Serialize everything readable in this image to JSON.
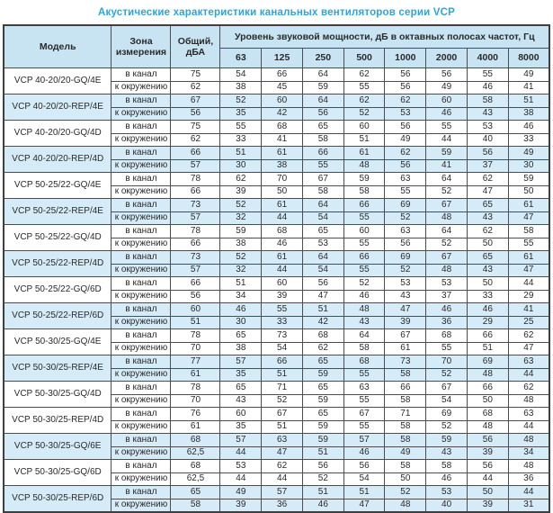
{
  "title": "Акустические характеристики канальных вентиляторов  серии VCP",
  "table": {
    "headers": {
      "model": "Модель",
      "zone": "Зона измерения",
      "total": "Общий, дБА",
      "band_group": "Уровень звуковой мощности, дБ в октавных полосах частот, Гц",
      "frequencies": [
        "63",
        "125",
        "250",
        "500",
        "1000",
        "2000",
        "4000",
        "8000"
      ]
    },
    "zone_labels": {
      "duct": "в канал",
      "ambient": "к окружению"
    },
    "colors": {
      "title_text": "#2aa5de",
      "header_bg": "#c8e4f3",
      "shaded_row_bg": "#d6ebf8",
      "border": "#4d4d4d"
    },
    "rows": [
      {
        "model": "VCP 40-20/20-GQ/4E",
        "shaded": false,
        "duct": {
          "total": "75",
          "bands": [
            "54",
            "66",
            "64",
            "62",
            "56",
            "56",
            "55",
            "49"
          ]
        },
        "ambient": {
          "total": "62",
          "bands": [
            "38",
            "45",
            "59",
            "55",
            "56",
            "49",
            "46",
            "41"
          ]
        }
      },
      {
        "model": "VCP 40-20/20-REP/4E",
        "shaded": true,
        "duct": {
          "total": "67",
          "bands": [
            "52",
            "60",
            "64",
            "62",
            "62",
            "60",
            "58",
            "51"
          ]
        },
        "ambient": {
          "total": "56",
          "bands": [
            "35",
            "42",
            "56",
            "52",
            "53",
            "46",
            "43",
            "38"
          ]
        }
      },
      {
        "model": "VCP 40-20/20-GQ/4D",
        "shaded": false,
        "duct": {
          "total": "75",
          "bands": [
            "55",
            "68",
            "65",
            "60",
            "56",
            "55",
            "53",
            "46"
          ]
        },
        "ambient": {
          "total": "62",
          "bands": [
            "33",
            "41",
            "58",
            "51",
            "49",
            "44",
            "40",
            "33"
          ]
        }
      },
      {
        "model": "VCP 40-20/20-REP/4D",
        "shaded": true,
        "duct": {
          "total": "66",
          "bands": [
            "51",
            "61",
            "66",
            "61",
            "62",
            "59",
            "56",
            "49"
          ]
        },
        "ambient": {
          "total": "57",
          "bands": [
            "30",
            "38",
            "55",
            "48",
            "56",
            "41",
            "37",
            "30"
          ]
        }
      },
      {
        "model": "VCP 50-25/22-GQ/4E",
        "shaded": false,
        "duct": {
          "total": "78",
          "bands": [
            "62",
            "70",
            "67",
            "59",
            "63",
            "64",
            "62",
            "59"
          ]
        },
        "ambient": {
          "total": "66",
          "bands": [
            "39",
            "50",
            "58",
            "58",
            "55",
            "52",
            "47",
            "50"
          ]
        }
      },
      {
        "model": "VCP 50-25/22-REP/4E",
        "shaded": true,
        "duct": {
          "total": "73",
          "bands": [
            "52",
            "61",
            "64",
            "66",
            "69",
            "67",
            "65",
            "61"
          ]
        },
        "ambient": {
          "total": "57",
          "bands": [
            "32",
            "44",
            "54",
            "55",
            "52",
            "48",
            "43",
            "47"
          ]
        }
      },
      {
        "model": "VCP 50-25/22-GQ/4D",
        "shaded": false,
        "duct": {
          "total": "78",
          "bands": [
            "59",
            "68",
            "65",
            "60",
            "63",
            "64",
            "62",
            "58"
          ]
        },
        "ambient": {
          "total": "66",
          "bands": [
            "38",
            "46",
            "53",
            "55",
            "56",
            "52",
            "50",
            "55"
          ]
        }
      },
      {
        "model": "VCP 50-25/22-REP/4D",
        "shaded": true,
        "duct": {
          "total": "73",
          "bands": [
            "52",
            "61",
            "64",
            "66",
            "69",
            "67",
            "65",
            "61"
          ]
        },
        "ambient": {
          "total": "57",
          "bands": [
            "32",
            "44",
            "54",
            "55",
            "52",
            "48",
            "43",
            "47"
          ]
        }
      },
      {
        "model": "VCP 50-25/22-GQ/6D",
        "shaded": false,
        "duct": {
          "total": "66",
          "bands": [
            "51",
            "60",
            "56",
            "52",
            "53",
            "53",
            "50",
            "44"
          ]
        },
        "ambient": {
          "total": "56",
          "bands": [
            "34",
            "39",
            "47",
            "46",
            "43",
            "37",
            "33",
            "29"
          ]
        }
      },
      {
        "model": "VCP 50-25/22-REP/6D",
        "shaded": true,
        "duct": {
          "total": "60",
          "bands": [
            "46",
            "55",
            "51",
            "48",
            "47",
            "46",
            "46",
            "41"
          ]
        },
        "ambient": {
          "total": "51",
          "bands": [
            "30",
            "33",
            "42",
            "43",
            "39",
            "36",
            "29",
            "25"
          ]
        }
      },
      {
        "model": "VCP 50-30/25-GQ/4E",
        "shaded": false,
        "duct": {
          "total": "78",
          "bands": [
            "65",
            "73",
            "68",
            "64",
            "67",
            "68",
            "66",
            "62"
          ]
        },
        "ambient": {
          "total": "70",
          "bands": [
            "38",
            "54",
            "62",
            "58",
            "61",
            "55",
            "51",
            "47"
          ]
        }
      },
      {
        "model": "VCP 50-30/25-REP/4E",
        "shaded": true,
        "duct": {
          "total": "77",
          "bands": [
            "57",
            "66",
            "65",
            "68",
            "73",
            "70",
            "69",
            "63"
          ]
        },
        "ambient": {
          "total": "61",
          "bands": [
            "35",
            "51",
            "59",
            "55",
            "58",
            "52",
            "48",
            "44"
          ]
        }
      },
      {
        "model": "VCP 50-30/25-GQ/4D",
        "shaded": false,
        "duct": {
          "total": "78",
          "bands": [
            "65",
            "71",
            "65",
            "63",
            "66",
            "67",
            "66",
            "62"
          ]
        },
        "ambient": {
          "total": "70",
          "bands": [
            "43",
            "52",
            "59",
            "55",
            "58",
            "54",
            "50",
            "48"
          ]
        }
      },
      {
        "model": "VCP 50-30/25-REP/4D",
        "shaded": false,
        "duct": {
          "total": "76",
          "bands": [
            "60",
            "67",
            "65",
            "67",
            "71",
            "69",
            "68",
            "63"
          ]
        },
        "ambient": {
          "total": "61",
          "bands": [
            "35",
            "51",
            "59",
            "55",
            "58",
            "52",
            "48",
            "44"
          ]
        }
      },
      {
        "model": "VCP 50-30/25-GQ/6E",
        "shaded": true,
        "duct": {
          "total": "68",
          "bands": [
            "57",
            "63",
            "59",
            "57",
            "58",
            "59",
            "56",
            "48"
          ]
        },
        "ambient": {
          "total": "62,5",
          "bands": [
            "44",
            "47",
            "51",
            "46",
            "49",
            "43",
            "39",
            "34"
          ]
        }
      },
      {
        "model": "VCP 50-30/25-GQ/6D",
        "shaded": false,
        "duct": {
          "total": "68",
          "bands": [
            "53",
            "62",
            "56",
            "56",
            "58",
            "58",
            "56",
            "48"
          ]
        },
        "ambient": {
          "total": "62,5",
          "bands": [
            "44",
            "44",
            "52",
            "54",
            "50",
            "46",
            "44",
            "36"
          ]
        }
      },
      {
        "model": "VCP 50-30/25-REP/6D",
        "shaded": true,
        "duct": {
          "total": "65",
          "bands": [
            "49",
            "57",
            "51",
            "51",
            "52",
            "53",
            "50",
            "44"
          ]
        },
        "ambient": {
          "total": "58",
          "bands": [
            "39",
            "36",
            "46",
            "47",
            "48",
            "40",
            "39",
            "31"
          ]
        }
      }
    ]
  }
}
